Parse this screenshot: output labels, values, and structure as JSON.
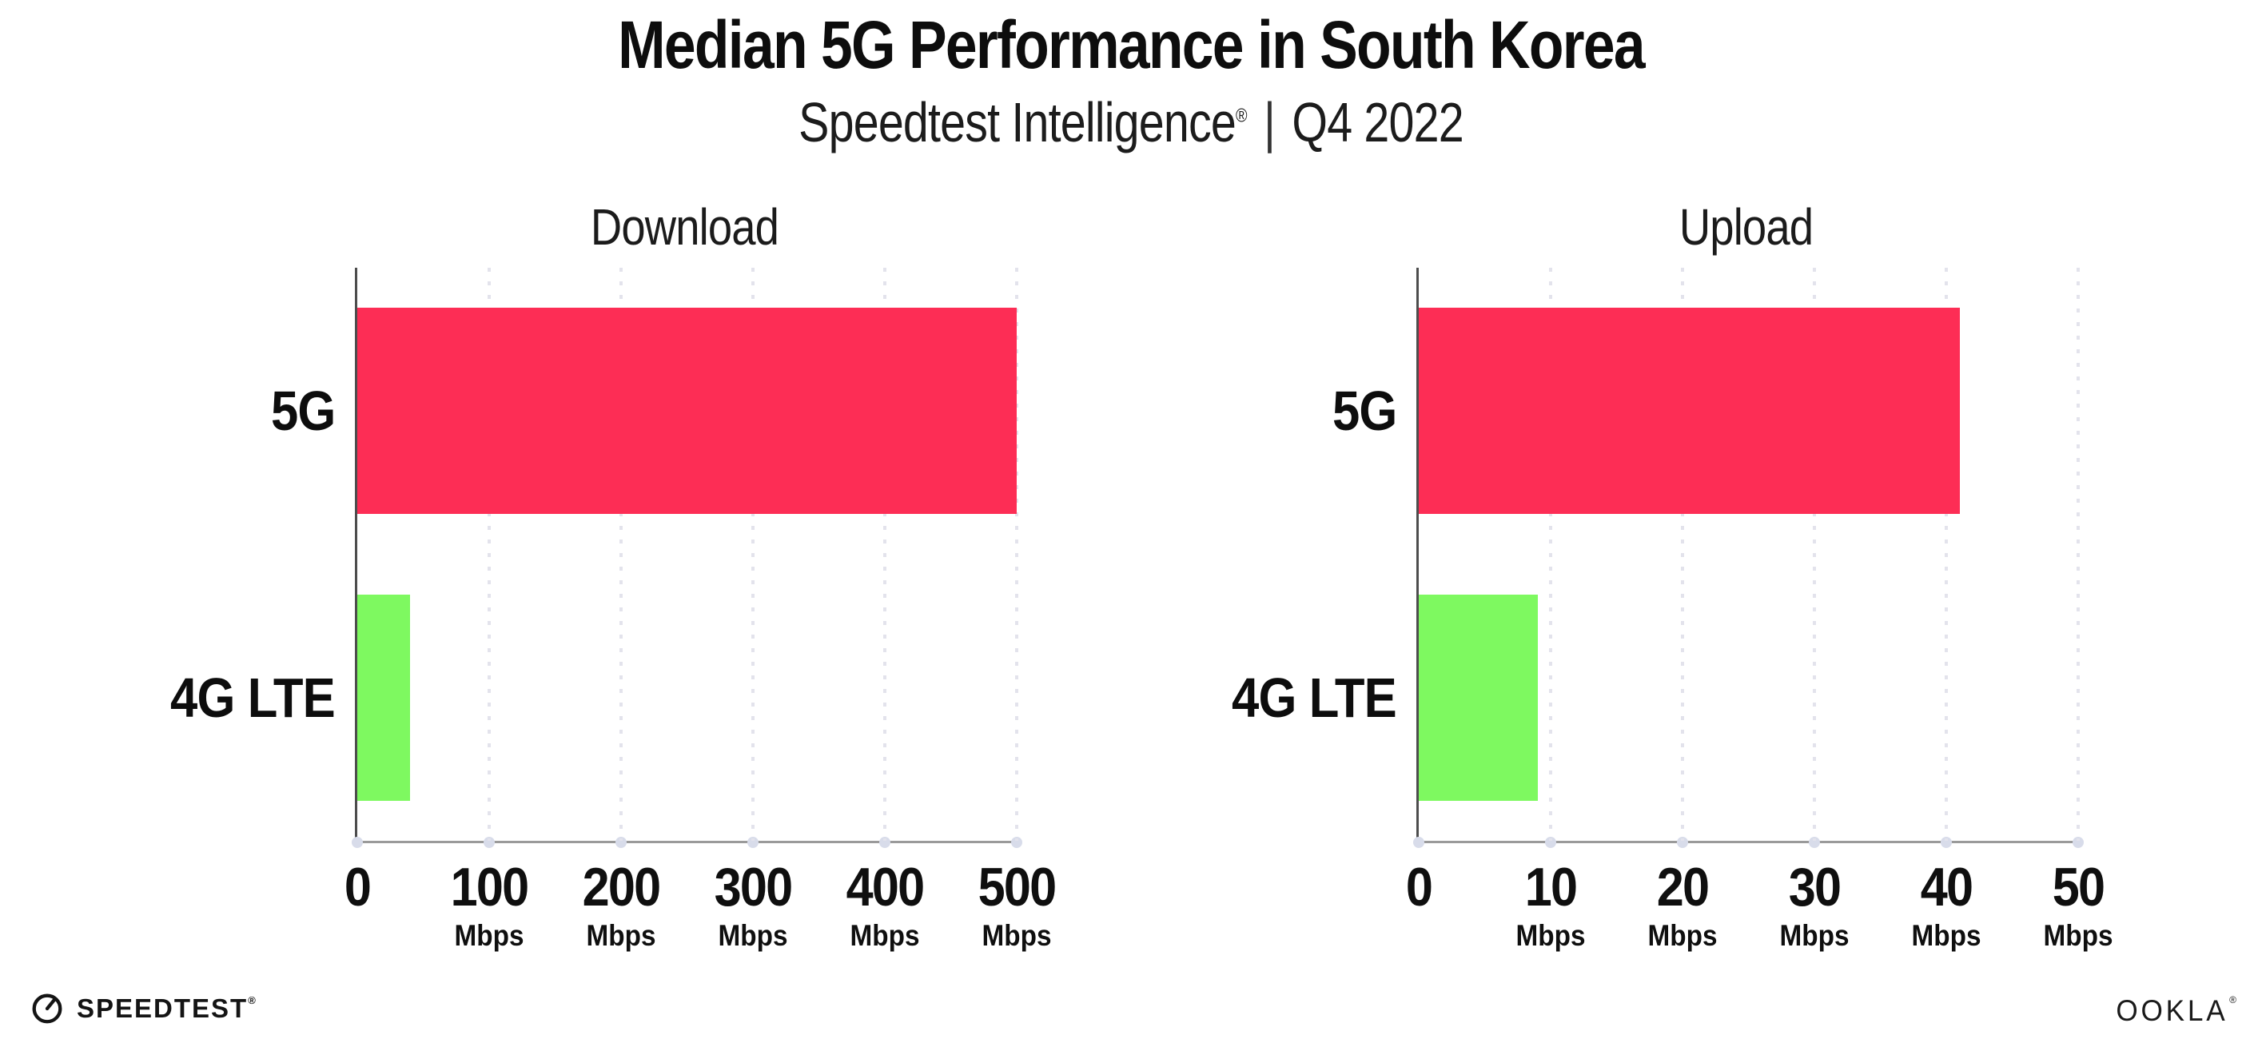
{
  "header": {
    "title": "Median 5G Performance in South Korea",
    "subtitle_brand": "Speedtest Intelligence",
    "subtitle_reg": "®",
    "subtitle_sep": "|",
    "subtitle_period": "Q4 2022"
  },
  "footer": {
    "speedtest_label": "SPEEDTEST",
    "speedtest_mark": "®",
    "ookla_label": "OOKLA",
    "ookla_mark": "®"
  },
  "colors": {
    "bar_5g": "#FD2D55",
    "bar_4g_lte": "#7EF960",
    "gridline": "#E3E3EC",
    "x_axis": "#9A9A9A",
    "y_axis": "#4D4D4D",
    "tick_dot": "#D8DCEA",
    "text": "#111111"
  },
  "chart_data": [
    {
      "type": "bar",
      "orientation": "horizontal",
      "title": "Download",
      "categories": [
        "5G",
        "4G LTE"
      ],
      "values": [
        500,
        40
      ],
      "unit": "Mbps",
      "xlim": [
        0,
        500
      ],
      "xticks": [
        0,
        100,
        200,
        300,
        400,
        500
      ],
      "bar_colors": [
        "#FD2D55",
        "#7EF960"
      ],
      "grid": true,
      "legend": "none"
    },
    {
      "type": "bar",
      "orientation": "horizontal",
      "title": "Upload",
      "categories": [
        "5G",
        "4G LTE"
      ],
      "values": [
        41,
        9
      ],
      "unit": "Mbps",
      "xlim": [
        0,
        50
      ],
      "xticks": [
        0,
        10,
        20,
        30,
        40,
        50
      ],
      "bar_colors": [
        "#FD2D55",
        "#7EF960"
      ],
      "grid": true,
      "legend": "none"
    }
  ]
}
